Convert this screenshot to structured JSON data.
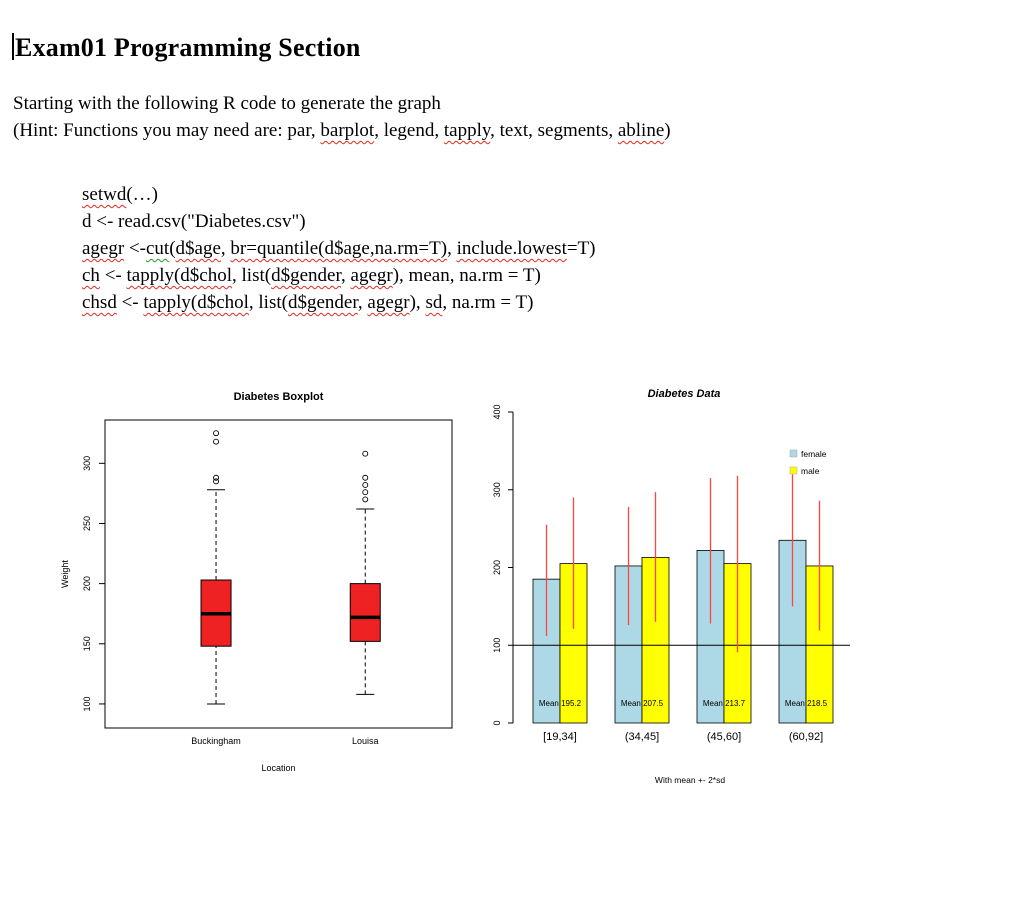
{
  "page": {
    "title": "Exam01 Programming Section",
    "intro": "Starting with the following R code to generate the graph",
    "hint_segments": [
      {
        "t": "(Hint: Functions you may need are: par, "
      },
      {
        "t": "barplot",
        "u": "red"
      },
      {
        "t": ", legend, "
      },
      {
        "t": "tapply",
        "u": "red"
      },
      {
        "t": ", text, segments, "
      },
      {
        "t": "abline",
        "u": "red"
      },
      {
        "t": ")"
      }
    ]
  },
  "code": {
    "lines": [
      [
        {
          "t": "setwd",
          "u": "red"
        },
        {
          "t": "(…)"
        }
      ],
      [
        {
          "t": "d <- read.csv(\"Diabetes.csv\")"
        }
      ],
      [
        {
          "t": "agegr",
          "u": "red"
        },
        {
          "t": " <-"
        },
        {
          "t": "cut",
          "u": "green"
        },
        {
          "t": "("
        },
        {
          "t": "d$age",
          "u": "red"
        },
        {
          "t": ", "
        },
        {
          "t": "br=quantile(d$age,na.rm=T)",
          "u": "red"
        },
        {
          "t": ", "
        },
        {
          "t": "include.lowest",
          "u": "red"
        },
        {
          "t": "=T)"
        }
      ],
      [
        {
          "t": "ch",
          "u": "red"
        },
        {
          "t": " <- "
        },
        {
          "t": "tapply(d$chol",
          "u": "red"
        },
        {
          "t": ", list("
        },
        {
          "t": "d$gender",
          "u": "red"
        },
        {
          "t": ", "
        },
        {
          "t": "agegr",
          "u": "red"
        },
        {
          "t": "), mean, na.rm = T)"
        }
      ],
      [
        {
          "t": "chsd",
          "u": "red"
        },
        {
          "t": " <- "
        },
        {
          "t": "tapply(d$chol",
          "u": "red"
        },
        {
          "t": ", list("
        },
        {
          "t": "d$gender",
          "u": "red"
        },
        {
          "t": ", "
        },
        {
          "t": "agegr",
          "u": "red"
        },
        {
          "t": "), "
        },
        {
          "t": "sd",
          "u": "red"
        },
        {
          "t": ", na.rm = T)"
        }
      ]
    ]
  },
  "chart_data": [
    {
      "type": "boxplot",
      "title": "Diabetes Boxplot",
      "xlabel": "Location",
      "ylabel": "Weight",
      "ylim": [
        80,
        336
      ],
      "yticks": [
        100,
        150,
        200,
        250,
        300
      ],
      "box_color": "#ee2222",
      "groups": [
        {
          "label": "Buckingham",
          "low": 100,
          "q1": 148,
          "median": 175,
          "q3": 203,
          "high": 278,
          "outliers": [
            285,
            288,
            318,
            325
          ]
        },
        {
          "label": "Louisa",
          "low": 108,
          "q1": 152,
          "median": 172,
          "q3": 200,
          "high": 262,
          "outliers": [
            270,
            276,
            282,
            288,
            308
          ]
        }
      ]
    },
    {
      "type": "bar",
      "title": "Diabetes Data",
      "categories": [
        "[19,34]",
        "(34,45]",
        "(45,60]",
        "(60,92]"
      ],
      "series": [
        {
          "name": "female",
          "color": "#add8e6",
          "values": [
            185,
            202,
            222,
            235
          ],
          "error_low": [
            112,
            126,
            128,
            150
          ],
          "error_high": [
            255,
            278,
            315,
            320
          ]
        },
        {
          "name": "male",
          "color": "#ffff00",
          "values": [
            205,
            213,
            205,
            202
          ],
          "error_low": [
            121,
            130,
            91,
            119
          ],
          "error_high": [
            290,
            297,
            318,
            286
          ]
        }
      ],
      "mean_labels": [
        "Mean 195.2",
        "Mean 207.5",
        "Mean 213.7",
        "Mean 218.5"
      ],
      "ylim": [
        0,
        400
      ],
      "yticks": [
        0,
        100,
        200,
        300,
        400
      ],
      "abline_y": 100,
      "error_color": "#ff4444",
      "mean_color": "#ff0000",
      "caption": "With mean +- 2*sd",
      "caption_color": "#1a1aff",
      "legend_position": "top-right"
    }
  ]
}
